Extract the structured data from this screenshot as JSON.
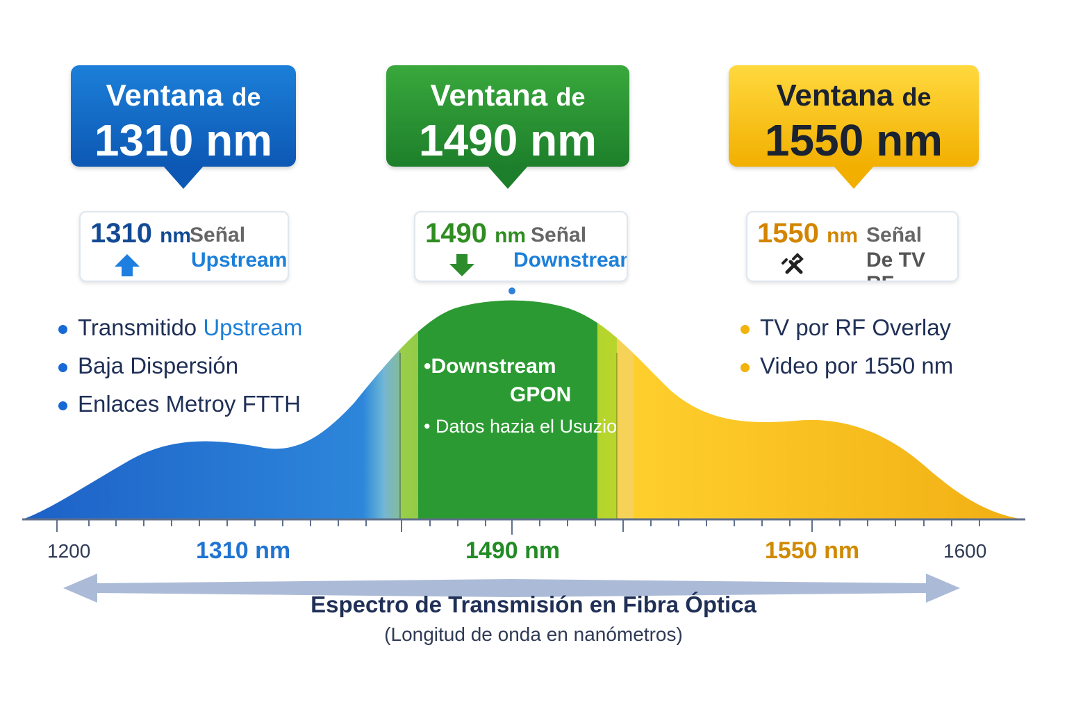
{
  "callouts": [
    {
      "prefix": "Ventana",
      "suffix": "de",
      "value": "1310 nm"
    },
    {
      "prefix": "Ventana",
      "suffix": "de",
      "value": "1490 nm"
    },
    {
      "prefix": "Ventana",
      "suffix": "de",
      "value": "1550 nm"
    }
  ],
  "signals": [
    {
      "nm_value": "1310",
      "nm_unit": "nm",
      "label1": "Señal",
      "label2": "Upstream"
    },
    {
      "nm_value": "1490",
      "nm_unit": "nm",
      "label1": "Señal",
      "label2": "Downstream"
    },
    {
      "nm_value": "1550",
      "nm_unit": "nm",
      "label1": "Señal",
      "label2": "De TV RF"
    }
  ],
  "left_bullets": [
    {
      "before": "Transmitido ",
      "accent": "Upstream"
    },
    {
      "before": "Baja Dispersión",
      "accent": ""
    },
    {
      "before": "Enlaces Metroy FTTH",
      "accent": ""
    }
  ],
  "right_bullets": [
    {
      "text": "TV por RF Overlay"
    },
    {
      "text": "Video por 1550 nm"
    }
  ],
  "center_notes": {
    "line1": "•Downstream",
    "line2": "GPON",
    "line3": "• Datos hazia el Usuzio"
  },
  "axis": {
    "start_label": "1200",
    "blue_label": "1310 nm",
    "green_label": "1490 nm",
    "gold_label": "1550 nm",
    "end_label": "1600"
  },
  "footer": {
    "title": "Espectro de Transmisión en Fibra Óptica",
    "subtitle": "(Longitud de onda en nanómetros)"
  },
  "icons": {
    "upstream": "up-arrow-icon",
    "downstream": "down-arrow-icon",
    "rf": "tools-icon"
  },
  "colors": {
    "blue": "#1c7fd8",
    "green": "#2f9b2c",
    "gold": "#f2b705",
    "axis": "#94a3bc"
  }
}
